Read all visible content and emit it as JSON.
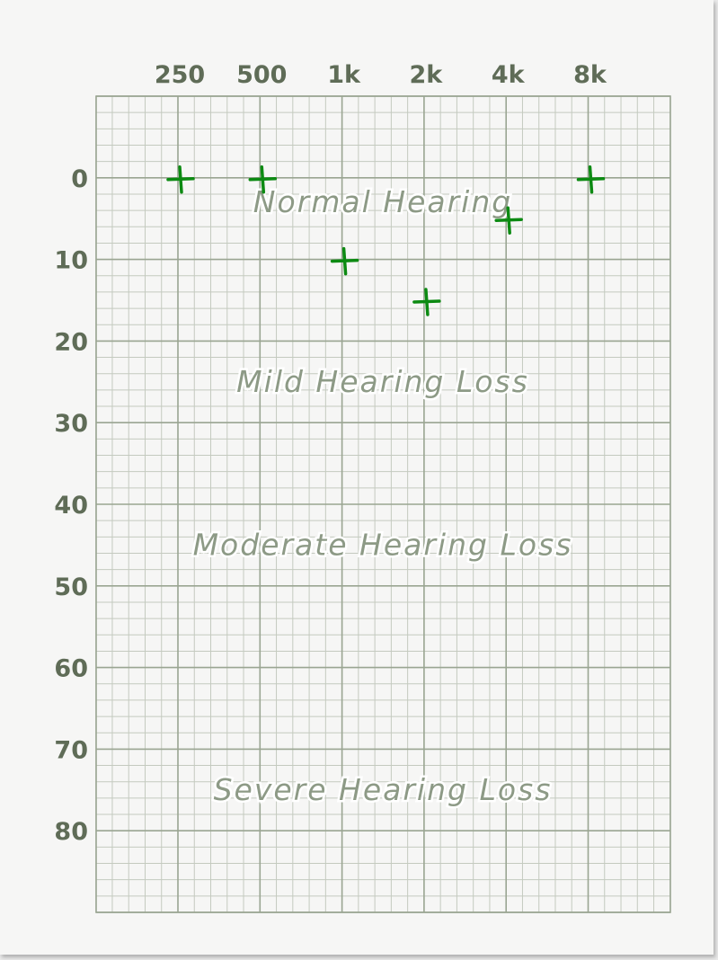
{
  "chart_data": {
    "type": "scatter",
    "title": "",
    "xlabel": "",
    "ylabel": "",
    "x_categories": [
      "250",
      "500",
      "1k",
      "2k",
      "4k",
      "8k"
    ],
    "y_ticks": [
      0,
      10,
      20,
      30,
      40,
      50,
      60,
      70,
      80
    ],
    "ylim": [
      -10,
      90
    ],
    "y_inverted": true,
    "grid": true,
    "series": [
      {
        "values": [
          0,
          0,
          10,
          15,
          5,
          0
        ],
        "marker": "plus",
        "color": "#0c8a12"
      }
    ],
    "bands": [
      {
        "label": "Normal Hearing",
        "y": 3
      },
      {
        "label": "Mild Hearing Loss",
        "y": 25
      },
      {
        "label": "Moderate Hearing Loss",
        "y": 45
      },
      {
        "label": "Severe Hearing Loss",
        "y": 75
      }
    ],
    "colors": {
      "grid_minor": "#c4cabf",
      "grid_major": "#9aa592",
      "tick_text": "#5f6c57",
      "band_text": "#8d9a86",
      "marker": "#0c8a12"
    }
  }
}
